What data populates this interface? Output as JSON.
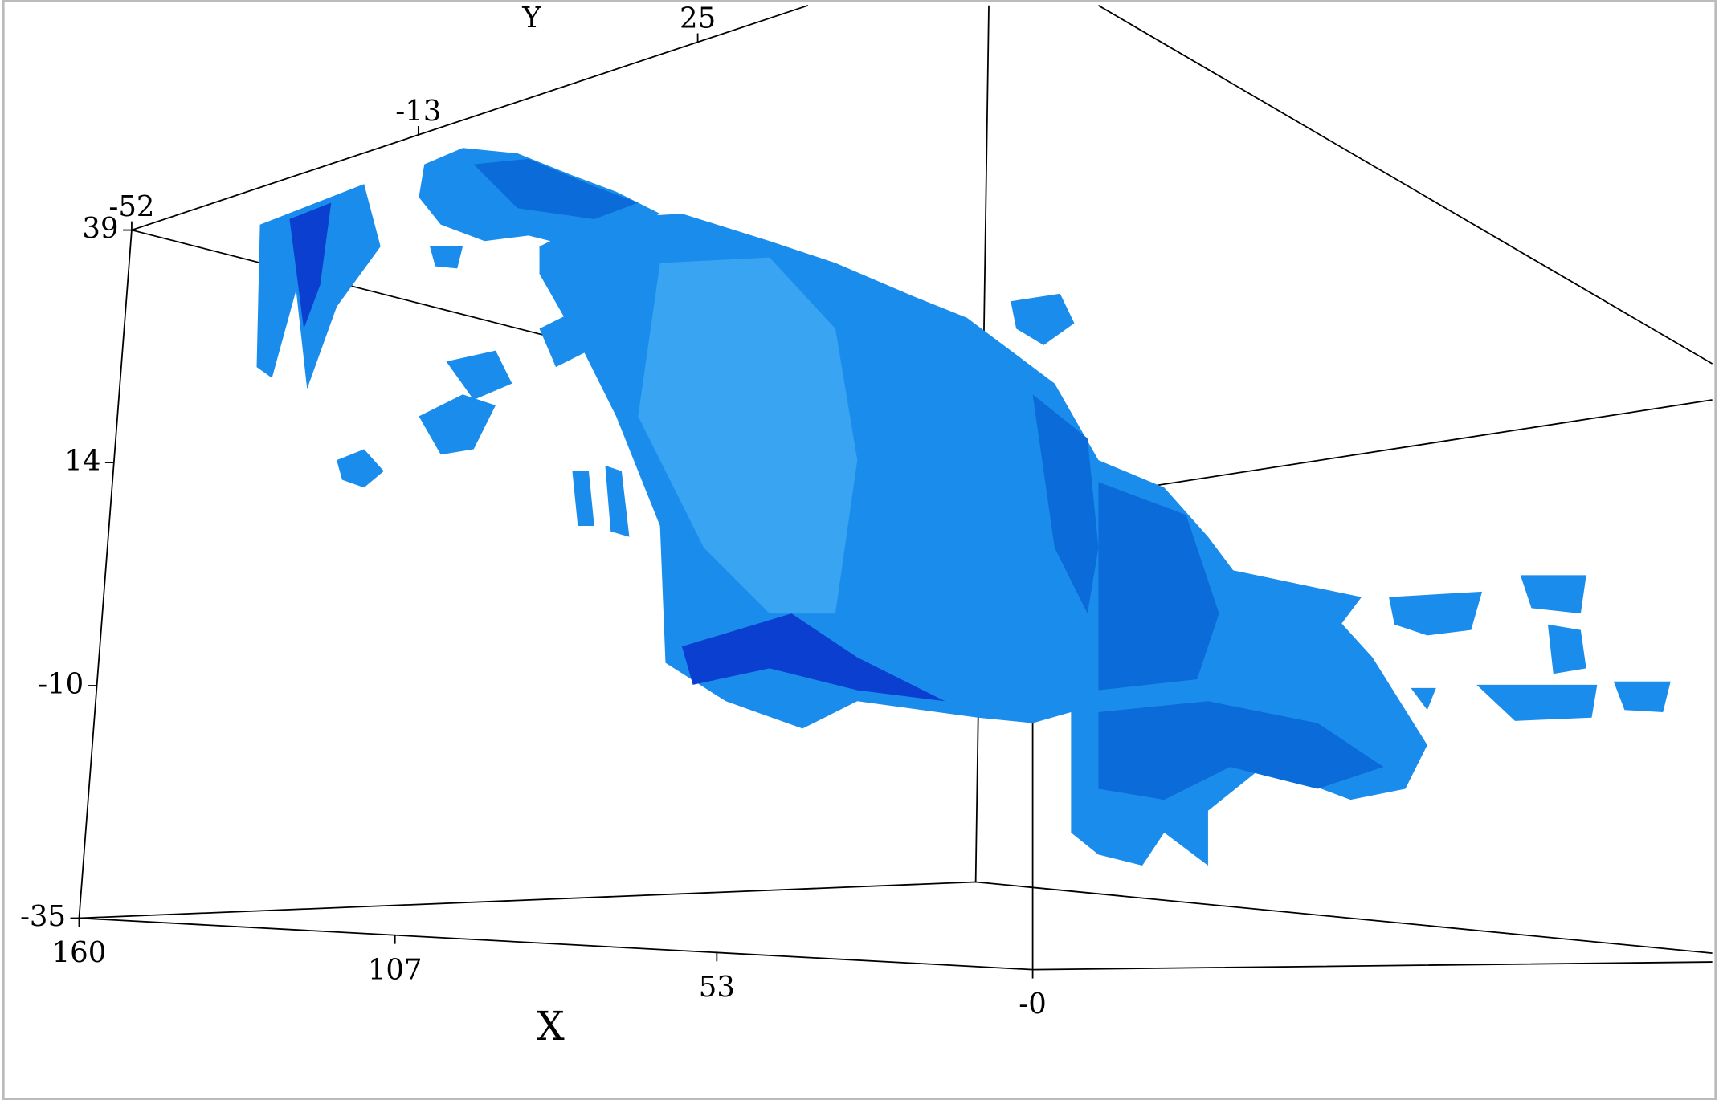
{
  "chart_data": {
    "type": "surface3d",
    "xlabel": "X",
    "ylabel": "Y",
    "xlim": [
      160,
      0
    ],
    "xticks": [
      160,
      107,
      53,
      {
        "value": 0,
        "label": "-0"
      }
    ],
    "ylim": [
      -52,
      40
    ],
    "yticks": [
      -52,
      -13,
      25
    ],
    "zlim": [
      -35,
      39
    ],
    "zticks": [
      39,
      14,
      -10,
      -35
    ],
    "color": "#1a8cec"
  }
}
